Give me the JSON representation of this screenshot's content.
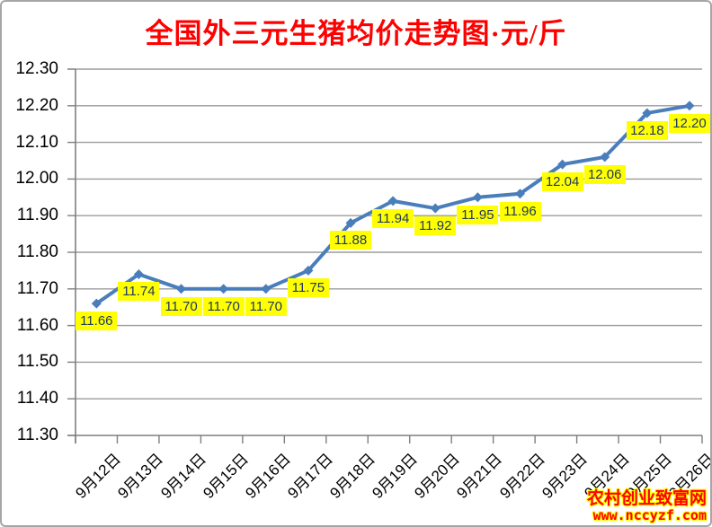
{
  "watermark": {
    "line1": "农村创业致富网",
    "line2": "www.nccyzf.com"
  },
  "colors": {
    "title": "#ff0000",
    "line": "#4a7ebb",
    "marker": "#4a7ebb",
    "gridline": "#9c9c9c",
    "axis": "#7f7f7f",
    "data_label_bg": "#ffff00",
    "data_label_text": "#1f3864",
    "axis_text": "#000000",
    "watermark_text": "#ff0000",
    "watermark_outline": "#ffff00",
    "background": "#ffffff"
  },
  "chart_data": {
    "type": "line",
    "title": "全国外三元生猪均价走势图·元/斤",
    "categories": [
      "9月12日",
      "9月13日",
      "9月14日",
      "9月15日",
      "9月16日",
      "9月17日",
      "9月18日",
      "9月19日",
      "9月20日",
      "9月21日",
      "9月22日",
      "9月23日",
      "9月24日",
      "9月25日",
      "9月26日"
    ],
    "values": [
      11.66,
      11.74,
      11.7,
      11.7,
      11.7,
      11.75,
      11.88,
      11.94,
      11.92,
      11.95,
      11.96,
      12.04,
      12.06,
      12.18,
      12.2
    ],
    "ylim": [
      11.3,
      12.3
    ],
    "ytick_step": 0.1,
    "value_format_decimals": 2,
    "xlabel": "",
    "ylabel": "",
    "grid": true,
    "legend": false,
    "marker": "diamond",
    "data_labels": true,
    "data_label_position": "below"
  }
}
